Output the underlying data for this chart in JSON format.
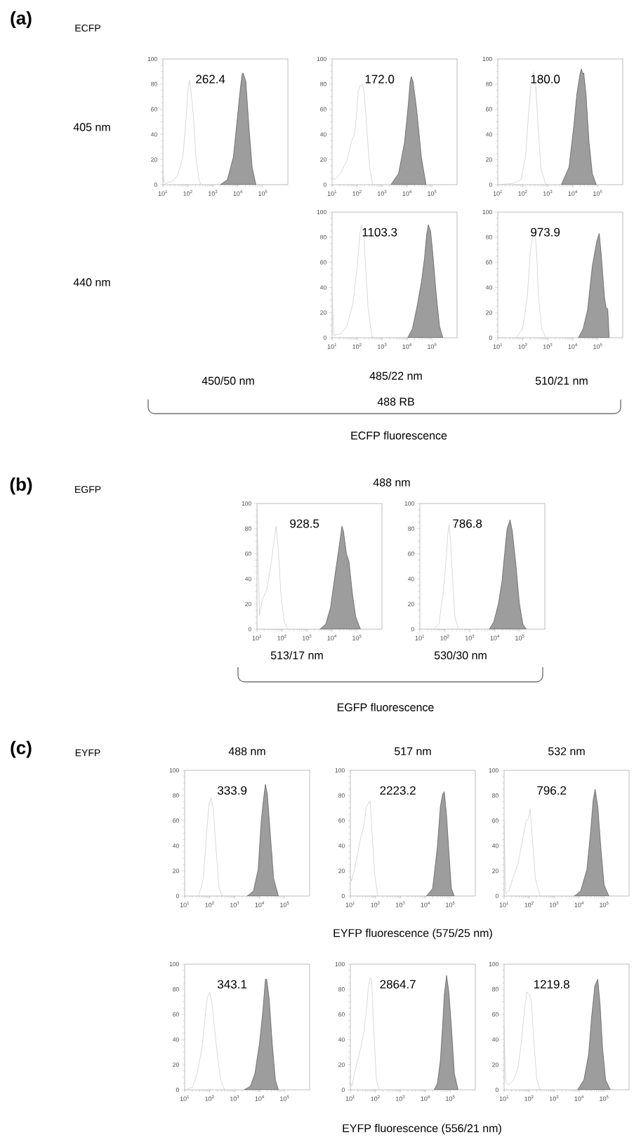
{
  "chart_data": [
    {
      "type": "area",
      "ylabel": "405 nm",
      "xlim": [
        10,
        1000000
      ],
      "ylim": [
        0,
        100
      ],
      "log": "x",
      "xticks": [
        {
          "value": 10,
          "label": "10$^{1}$"
        },
        {
          "value": 100,
          "label": "10$^{2}$"
        },
        {
          "value": 1000,
          "label": "10$^{3}$"
        },
        {
          "value": 10000,
          "label": "10$^{4}$"
        },
        {
          "value": 100000,
          "label": "10$^{5}$"
        }
      ],
      "yticks": [
        0,
        20,
        40,
        60,
        80,
        100
      ],
      "annotations": [
        "262.4",
        "(a)",
        "ECFP",
        "450/50 nm"
      ],
      "series": [
        {
          "type": "line",
          "color": "#c8c8c8",
          "x": [
            10,
            11.2,
            12.6,
            25,
            40,
            63,
            79,
            93,
            107,
            117,
            132,
            166,
            209,
            282,
            355
          ],
          "values": [
            13,
            2,
            1,
            3,
            8,
            22,
            45,
            65,
            80,
            83,
            75,
            55,
            22,
            3,
            0
          ]
        },
        {
          "color": "#9d9d9d",
          "x": [
            2000,
            3800,
            6600,
            10200,
            12600,
            14800,
            16200,
            20900,
            27500,
            37200,
            52500
          ],
          "values": [
            0,
            4,
            22,
            59,
            77,
            88,
            89,
            82,
            47,
            14,
            0
          ]
        }
      ]
    },
    {
      "type": "area",
      "xlim": [
        10,
        1000000
      ],
      "ylim": [
        0,
        100
      ],
      "log": "x",
      "xticks": [
        {
          "value": 10,
          "label": "10$^{1}$"
        },
        {
          "value": 100,
          "label": "10$^{2}$"
        },
        {
          "value": 1000,
          "label": "10$^{3}$"
        },
        {
          "value": 10000,
          "label": "10$^{4}$"
        },
        {
          "value": 100000,
          "label": "10$^{5}$"
        }
      ],
      "yticks": [
        0,
        20,
        40,
        60,
        80,
        100
      ],
      "annotations": [
        "172.0"
      ],
      "series": [
        {
          "type": "line",
          "color": "#c8c8c8",
          "x": [
            10,
            12.6,
            21.9,
            38.9,
            58.9,
            77.6,
            89.1,
            110,
            135,
            166,
            191,
            240,
            316,
            417
          ],
          "values": [
            5,
            4,
            9,
            19,
            34,
            40,
            49,
            74,
            79,
            80,
            74,
            47,
            14,
            0
          ]
        },
        {
          "color": "#9d9d9d",
          "x": [
            2240,
            4570,
            7940,
            11200,
            13200,
            14800,
            17400,
            24500,
            37200,
            57500
          ],
          "values": [
            0,
            9,
            34,
            64,
            82,
            86,
            82,
            59,
            22,
            0
          ]
        }
      ]
    },
    {
      "type": "area",
      "xlim": [
        10,
        1000000
      ],
      "ylim": [
        0,
        100
      ],
      "log": "x",
      "xticks": [
        {
          "value": 10,
          "label": "10$^{1}$"
        },
        {
          "value": 100,
          "label": "10$^{2}$"
        },
        {
          "value": 1000,
          "label": "10$^{3}$"
        },
        {
          "value": 10000,
          "label": "10$^{4}$"
        },
        {
          "value": 100000,
          "label": "10$^{5}$"
        }
      ],
      "yticks": [
        0,
        20,
        40,
        60,
        80,
        100
      ],
      "annotations": [
        "180.0"
      ],
      "series": [
        {
          "type": "line",
          "color": "#c8c8c8",
          "x": [
            10,
            41.7,
            85.1,
            129,
            174,
            219,
            263,
            324,
            407,
            537,
            832
          ],
          "values": [
            0,
            1,
            4,
            22,
            59,
            82,
            90,
            82,
            47,
            12,
            0
          ]
        },
        {
          "color": "#9d9d9d",
          "x": [
            3470,
            7080,
            11000,
            14500,
            19500,
            21900,
            25700,
            27500,
            33900,
            44700,
            60300,
            87100
          ],
          "values": [
            0,
            14,
            47,
            72,
            88,
            92,
            88,
            89,
            72,
            34,
            9,
            0
          ]
        }
      ]
    },
    {
      "type": "area",
      "ylabel": "440 nm",
      "xlabel": "485/22 nm",
      "xlim": [
        10,
        1000000
      ],
      "ylim": [
        0,
        100
      ],
      "log": "x",
      "xticks": [
        {
          "value": 10,
          "label": "10$^{1}$"
        },
        {
          "value": 100,
          "label": "10$^{2}$"
        },
        {
          "value": 1000,
          "label": "10$^{3}$"
        },
        {
          "value": 10000,
          "label": "10$^{4}$"
        },
        {
          "value": 100000,
          "label": "10$^{5}$"
        }
      ],
      "yticks": [
        0,
        20,
        40,
        60,
        80,
        100
      ],
      "annotations": [
        "1103.3",
        "488 RB",
        "ECFP fluorescence"
      ],
      "series": [
        {
          "type": "line",
          "color": "#c8c8c8",
          "x": [
            10,
            11.7,
            21.9,
            38.9,
            67.6,
            102,
            129,
            148,
            182,
            219,
            275,
            389,
            479
          ],
          "values": [
            34,
            2,
            3,
            9,
            27,
            57,
            82,
            90,
            84,
            57,
            24,
            1,
            0
          ]
        },
        {
          "color": "#9d9d9d",
          "x": [
            10500,
            16200,
            24500,
            37200,
            50100,
            60300,
            70800,
            87100,
            105000,
            151000,
            200000,
            269000
          ],
          "values": [
            0,
            7,
            24,
            44,
            64,
            82,
            90,
            85,
            69,
            32,
            9,
            0
          ]
        }
      ]
    },
    {
      "type": "area",
      "xlabel": "510/21 nm",
      "xlim": [
        10,
        1000000
      ],
      "ylim": [
        0,
        100
      ],
      "log": "x",
      "xticks": [
        {
          "value": 10,
          "label": "10$^{1}$"
        },
        {
          "value": 100,
          "label": "10$^{2}$"
        },
        {
          "value": 1000,
          "label": "10$^{3}$"
        },
        {
          "value": 10000,
          "label": "10$^{4}$"
        },
        {
          "value": 100000,
          "label": "10$^{5}$"
        }
      ],
      "yticks": [
        0,
        20,
        40,
        60,
        80,
        100
      ],
      "annotations": [
        "973.9"
      ],
      "series": [
        {
          "type": "line",
          "color": "#c8c8c8",
          "x": [
            55,
            97.7,
            151,
            200,
            263,
            309,
            355,
            427,
            575,
            832
          ],
          "values": [
            0,
            7,
            32,
            69,
            83,
            84,
            69,
            32,
            7,
            0
          ]
        },
        {
          "color": "#9d9d9d",
          "x": [
            16600,
            25700,
            38900,
            60300,
            91200,
            115000,
            141000,
            186000,
            214000,
            251000,
            288000
          ],
          "values": [
            0,
            7,
            22,
            57,
            77,
            83,
            64,
            32,
            24,
            23,
            0
          ]
        }
      ]
    },
    {
      "type": "area",
      "xlabel": "513/17 nm",
      "xlim": [
        10,
        1000000
      ],
      "ylim": [
        0,
        100
      ],
      "log": "x",
      "xticks": [
        {
          "value": 10,
          "label": "10$^{1}$"
        },
        {
          "value": 100,
          "label": "10$^{2}$"
        },
        {
          "value": 1000,
          "label": "10$^{3}$"
        },
        {
          "value": 10000,
          "label": "10$^{4}$"
        },
        {
          "value": 100000,
          "label": "10$^{5}$"
        }
      ],
      "yticks": [
        0,
        20,
        40,
        60,
        80,
        100
      ],
      "annotations": [
        "928.5",
        "(b)",
        "EGFP",
        "488 nm",
        "EGFP fluorescence"
      ],
      "series": [
        {
          "type": "line",
          "color": "#c8c8c8",
          "x": [
            10,
            12.6,
            16.2,
            25.1,
            34.7,
            42.7,
            52.5,
            58.9,
            72.4,
            89.1,
            123,
            170
          ],
          "values": [
            95,
            11,
            23,
            32,
            49,
            62,
            76,
            82,
            62,
            30,
            6,
            0
          ]
        },
        {
          "color": "#9d9d9d",
          "x": [
            3310,
            5620,
            8710,
            13200,
            18200,
            25100,
            28800,
            38000,
            47900,
            66100,
            89100,
            138000
          ],
          "values": [
            0,
            4,
            17,
            43,
            62,
            82,
            78,
            60,
            54,
            28,
            10,
            0
          ]
        }
      ]
    },
    {
      "type": "area",
      "xlabel": "530/30 nm",
      "xlim": [
        10,
        1000000
      ],
      "ylim": [
        0,
        100
      ],
      "log": "x",
      "xticks": [
        {
          "value": 10,
          "label": "10$^{1}$"
        },
        {
          "value": 100,
          "label": "10$^{2}$"
        },
        {
          "value": 1000,
          "label": "10$^{3}$"
        },
        {
          "value": 10000,
          "label": "10$^{4}$"
        },
        {
          "value": 100000,
          "label": "10$^{5}$"
        }
      ],
      "yticks": [
        0,
        20,
        40,
        60,
        80,
        100
      ],
      "annotations": [
        "786.8"
      ],
      "series": [
        {
          "type": "line",
          "color": "#c8c8c8",
          "x": [
            33.9,
            57.5,
            87.1,
            115,
            132,
            148,
            174,
            204,
            251,
            347
          ],
          "values": [
            0,
            4,
            30,
            58,
            76,
            83,
            67,
            39,
            10,
            0
          ]
        },
        {
          "color": "#9d9d9d",
          "x": [
            6030,
            9120,
            14100,
            19500,
            25100,
            30900,
            40700,
            50100,
            69200,
            95500,
            132000,
            182000
          ],
          "values": [
            0,
            6,
            21,
            39,
            62,
            80,
            87,
            78,
            52,
            21,
            4,
            0
          ]
        }
      ]
    },
    {
      "type": "area",
      "title": "488 nm",
      "xlim": [
        10,
        1000000
      ],
      "ylim": [
        0,
        100
      ],
      "log": "x",
      "xticks": [
        {
          "value": 10,
          "label": "10$^{1}$"
        },
        {
          "value": 100,
          "label": "10$^{2}$"
        },
        {
          "value": 1000,
          "label": "10$^{3}$"
        },
        {
          "value": 10000,
          "label": "10$^{4}$"
        },
        {
          "value": 100000,
          "label": "10$^{5}$"
        }
      ],
      "yticks": [
        0,
        20,
        40,
        60,
        80,
        100
      ],
      "annotations": [
        "333.9",
        "(c)",
        "EYFP"
      ],
      "series": [
        {
          "type": "line",
          "color": "#c8c8c8",
          "x": [
            36.3,
            56.2,
            75.9,
            95.5,
            115,
            141,
            178,
            240,
            316
          ],
          "values": [
            0,
            14,
            51,
            74,
            78,
            69,
            39,
            6,
            0
          ]
        },
        {
          "color": "#9d9d9d",
          "x": [
            3160,
            5620,
            8710,
            11500,
            14100,
            17000,
            20400,
            27500,
            36300,
            56200
          ],
          "values": [
            0,
            4,
            21,
            59,
            76,
            89,
            81,
            46,
            14,
            0
          ]
        }
      ]
    },
    {
      "type": "area",
      "title": "517 nm",
      "xlim": [
        10,
        1000000
      ],
      "ylim": [
        0,
        100
      ],
      "log": "x",
      "xticks": [
        {
          "value": 10,
          "label": "10$^{1}$"
        },
        {
          "value": 100,
          "label": "10$^{2}$"
        },
        {
          "value": 1000,
          "label": "10$^{3}$"
        },
        {
          "value": 10000,
          "label": "10$^{4}$"
        },
        {
          "value": 100000,
          "label": "10$^{5}$"
        }
      ],
      "yticks": [
        0,
        20,
        40,
        60,
        80,
        100
      ],
      "annotations": [
        "2223.2",
        "EYFP fluorescence (575/25 nm)"
      ],
      "series": [
        {
          "type": "line",
          "color": "#c8c8c8",
          "x": [
            10,
            11,
            14.5,
            19.5,
            25.7,
            34.7,
            43.7,
            53.7,
            61.7,
            77.6,
            95.5,
            126
          ],
          "values": [
            15,
            12,
            21,
            34,
            46,
            56,
            71,
            74,
            76,
            44,
            16,
            0
          ]
        },
        {
          "color": "#9d9d9d",
          "x": [
            11000,
            19500,
            30200,
            39800,
            49000,
            57500,
            70800,
            87100,
            110000,
            145000
          ],
          "values": [
            0,
            6,
            39,
            71,
            81,
            83,
            64,
            36,
            6,
            0
          ]
        }
      ]
    },
    {
      "type": "area",
      "title": "532 nm",
      "xlim": [
        10,
        1000000
      ],
      "ylim": [
        0,
        100
      ],
      "log": "x",
      "xticks": [
        {
          "value": 10,
          "label": "10$^{1}$"
        },
        {
          "value": 100,
          "label": "10$^{2}$"
        },
        {
          "value": 1000,
          "label": "10$^{3}$"
        },
        {
          "value": 10000,
          "label": "10$^{4}$"
        },
        {
          "value": 100000,
          "label": "10$^{5}$"
        }
      ],
      "yticks": [
        0,
        20,
        40,
        60,
        80,
        100
      ],
      "annotations": [
        "796.2"
      ],
      "series": [
        {
          "type": "line",
          "color": "#c8c8c8",
          "x": [
            10,
            11.5,
            15.5,
            24,
            36.3,
            56.2,
            75.9,
            91.2,
            110,
            135,
            178,
            275
          ],
          "values": [
            60,
            2,
            4,
            16,
            26,
            46,
            60,
            61,
            69,
            46,
            14,
            0
          ]
        },
        {
          "color": "#9d9d9d",
          "x": [
            6460,
            11500,
            20400,
            28800,
            36300,
            43700,
            56200,
            75900,
            100000,
            155000
          ],
          "values": [
            0,
            4,
            21,
            51,
            76,
            85,
            71,
            36,
            9,
            0
          ]
        }
      ]
    },
    {
      "type": "area",
      "xlim": [
        10,
        1000000
      ],
      "ylim": [
        0,
        100
      ],
      "log": "x",
      "xticks": [
        {
          "value": 10,
          "label": "10$^{1}$"
        },
        {
          "value": 100,
          "label": "10$^{2}$"
        },
        {
          "value": 1000,
          "label": "10$^{3}$"
        },
        {
          "value": 10000,
          "label": "10$^{4}$"
        },
        {
          "value": 100000,
          "label": "10$^{5}$"
        }
      ],
      "yticks": [
        0,
        20,
        40,
        60,
        80,
        100
      ],
      "annotations": [
        "343.1"
      ],
      "series": [
        {
          "type": "line",
          "color": "#c8c8c8",
          "x": [
            10,
            20.4,
            31.6,
            49,
            64.6,
            79.4,
            100,
            126,
            178,
            275,
            398
          ],
          "values": [
            0,
            2,
            13,
            33,
            56,
            73,
            78,
            68,
            38,
            8,
            0
          ]
        },
        {
          "color": "#9d9d9d",
          "x": [
            2400,
            4270,
            6460,
            10000,
            13500,
            17000,
            19100,
            24000,
            31600,
            42700,
            56200
          ],
          "values": [
            0,
            3,
            13,
            38,
            63,
            88,
            88,
            73,
            38,
            8,
            0
          ]
        }
      ]
    },
    {
      "type": "area",
      "xlim": [
        10,
        1000000
      ],
      "ylim": [
        0,
        100
      ],
      "log": "x",
      "xticks": [
        {
          "value": 10,
          "label": "10$^{1}$"
        },
        {
          "value": 100,
          "label": "10$^{2}$"
        },
        {
          "value": 1000,
          "label": "10$^{3}$"
        },
        {
          "value": 10000,
          "label": "10$^{4}$"
        },
        {
          "value": 100000,
          "label": "10$^{5}$"
        }
      ],
      "yticks": [
        0,
        20,
        40,
        60,
        80,
        100
      ],
      "annotations": [
        "2864.7",
        "EYFP fluorescence (556/21 nm)"
      ],
      "series": [
        {
          "type": "line",
          "color": "#c8c8c8",
          "x": [
            10,
            11.5,
            14.5,
            19.5,
            25.7,
            34.7,
            43.7,
            53.7,
            61.7,
            70.8,
            81.3,
            110,
            145
          ],
          "values": [
            6,
            3,
            13,
            23,
            33,
            46,
            63,
            83,
            89,
            88,
            58,
            8,
            0
          ]
        },
        {
          "color": "#9d9d9d",
          "x": [
            22400,
            30200,
            39800,
            49000,
            57500,
            70800,
            87100,
            110000,
            145000,
            204000
          ],
          "values": [
            0,
            5,
            23,
            51,
            76,
            91,
            78,
            51,
            13,
            0
          ]
        }
      ]
    },
    {
      "type": "area",
      "xlim": [
        10,
        1000000
      ],
      "ylim": [
        0,
        100
      ],
      "log": "x",
      "xticks": [
        {
          "value": 10,
          "label": "10$^{1}$"
        },
        {
          "value": 100,
          "label": "10$^{2}$"
        },
        {
          "value": 1000,
          "label": "10$^{3}$"
        },
        {
          "value": 10000,
          "label": "10$^{4}$"
        },
        {
          "value": 100000,
          "label": "10$^{5}$"
        }
      ],
      "yticks": [
        0,
        20,
        40,
        60,
        80,
        100
      ],
      "annotations": [
        "1219.8"
      ],
      "series": [
        {
          "type": "line",
          "color": "#c8c8c8",
          "x": [
            10,
            11.5,
            15.5,
            24,
            36.3,
            49,
            64.6,
            81.3,
            100,
            123,
            155,
            204,
            275
          ],
          "values": [
            50,
            6,
            4,
            8,
            18,
            38,
            63,
            78,
            76,
            71,
            38,
            8,
            0
          ]
        },
        {
          "color": "#9d9d9d",
          "x": [
            8710,
            15500,
            24000,
            31600,
            42700,
            56200,
            69200,
            87100,
            115000,
            178000
          ],
          "values": [
            0,
            8,
            28,
            58,
            83,
            88,
            68,
            33,
            8,
            0
          ]
        }
      ]
    }
  ]
}
